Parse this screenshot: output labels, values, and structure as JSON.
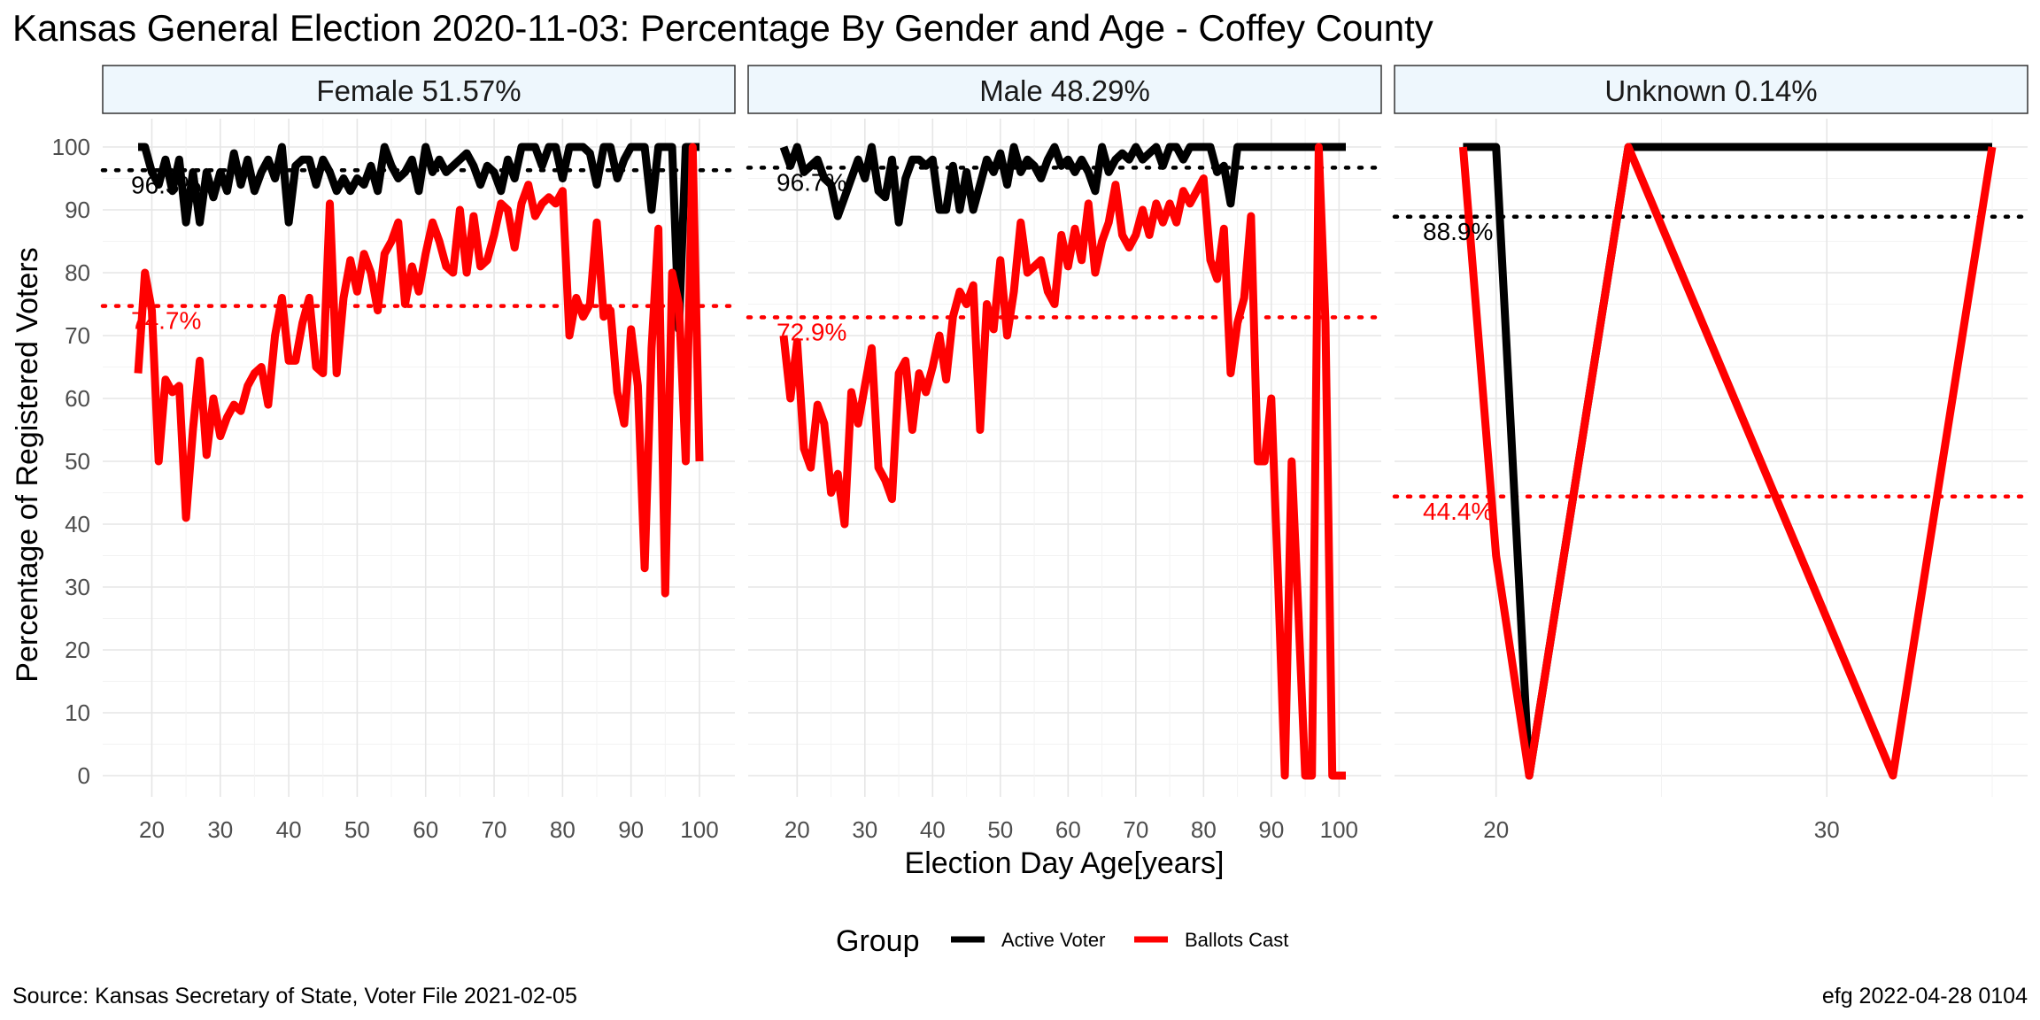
{
  "chart_data": {
    "type": "line",
    "title": "Kansas General Election 2020-11-03:  Percentage By Gender and Age - Coffey County",
    "xlabel": "Election Day Age[years]",
    "ylabel": "Percentage of Registered Voters",
    "ylim": [
      0,
      100
    ],
    "y_ticks": [
      0,
      10,
      20,
      30,
      40,
      50,
      60,
      70,
      80,
      90,
      100
    ],
    "legend": {
      "title": "Group",
      "placement": "bottom",
      "items": [
        {
          "label": "Active Voter",
          "color": "#000000"
        },
        {
          "label": "Ballots Cast",
          "color": "#ff0000"
        }
      ]
    },
    "caption_left": "Source:  Kansas Secretary of State, Voter File  2021-02-05",
    "caption_right": "efg 2022-04-28 0104",
    "colors": {
      "active": "#000000",
      "ballots": "#ff0000",
      "strip_fill": "#eef7fd",
      "grid": "#ebebeb"
    },
    "panels": [
      {
        "strip": "Female 51.57%",
        "xlim": [
          18,
          100
        ],
        "x_ticks": [
          20,
          30,
          40,
          50,
          60,
          70,
          80,
          90,
          100
        ],
        "active_mean": 96.3,
        "ballots_mean": 74.7,
        "active_label": "96.3%",
        "ballots_label": "74.7%",
        "series": [
          {
            "name": "Active Voter",
            "x": [
              18,
              19,
              20,
              21,
              22,
              23,
              24,
              25,
              26,
              27,
              28,
              29,
              30,
              31,
              32,
              33,
              34,
              35,
              36,
              37,
              38,
              39,
              40,
              41,
              42,
              43,
              44,
              45,
              46,
              47,
              48,
              49,
              50,
              51,
              52,
              53,
              54,
              55,
              56,
              57,
              58,
              59,
              60,
              61,
              62,
              63,
              64,
              65,
              66,
              67,
              68,
              69,
              70,
              71,
              72,
              73,
              74,
              75,
              76,
              77,
              78,
              79,
              80,
              81,
              82,
              83,
              84,
              85,
              86,
              87,
              88,
              89,
              90,
              91,
              92,
              93,
              94,
              95,
              96,
              97,
              98,
              99,
              100
            ],
            "y": [
              100,
              100,
              96,
              94,
              98,
              93,
              98,
              88,
              96,
              88,
              96,
              92,
              96,
              93,
              99,
              94,
              98,
              93,
              96,
              98,
              95,
              100,
              88,
              97,
              98,
              98,
              94,
              98,
              96,
              93,
              95,
              93,
              95,
              94,
              97,
              93,
              100,
              97,
              95,
              96,
              98,
              93,
              100,
              96,
              98,
              96,
              97,
              98,
              99,
              97,
              94,
              97,
              96,
              93,
              98,
              95,
              100,
              100,
              100,
              97,
              100,
              100,
              95,
              100,
              100,
              100,
              99,
              94,
              100,
              100,
              95,
              98,
              100,
              100,
              100,
              90,
              100,
              100,
              100,
              71,
              100,
              100,
              100
            ]
          },
          {
            "name": "Ballots Cast",
            "x": [
              18,
              19,
              20,
              21,
              22,
              23,
              24,
              25,
              26,
              27,
              28,
              29,
              30,
              31,
              32,
              33,
              34,
              35,
              36,
              37,
              38,
              39,
              40,
              41,
              42,
              43,
              44,
              45,
              46,
              47,
              48,
              49,
              50,
              51,
              52,
              53,
              54,
              55,
              56,
              57,
              58,
              59,
              60,
              61,
              62,
              63,
              64,
              65,
              66,
              67,
              68,
              69,
              70,
              71,
              72,
              73,
              74,
              75,
              76,
              77,
              78,
              79,
              80,
              81,
              82,
              83,
              84,
              85,
              86,
              87,
              88,
              89,
              90,
              91,
              92,
              93,
              94,
              95,
              96,
              97,
              98,
              99,
              100
            ],
            "y": [
              64,
              80,
              74,
              50,
              63,
              61,
              62,
              41,
              55,
              66,
              51,
              60,
              54,
              57,
              59,
              58,
              62,
              64,
              65,
              59,
              70,
              76,
              66,
              66,
              72,
              76,
              65,
              64,
              91,
              64,
              76,
              82,
              77,
              83,
              80,
              74,
              83,
              85,
              88,
              75,
              81,
              77,
              83,
              88,
              85,
              81,
              80,
              90,
              80,
              89,
              81,
              82,
              86,
              91,
              90,
              84,
              91,
              94,
              89,
              91,
              92,
              91,
              93,
              70,
              76,
              73,
              75,
              88,
              73,
              74,
              61,
              56,
              71,
              62,
              33,
              68,
              87,
              29,
              80,
              75,
              50,
              100,
              50
            ]
          }
        ]
      },
      {
        "strip": "Male 48.29%",
        "xlim": [
          18,
          101
        ],
        "x_ticks": [
          20,
          30,
          40,
          50,
          60,
          70,
          80,
          90,
          100
        ],
        "active_mean": 96.7,
        "ballots_mean": 72.9,
        "active_label": "96.7%",
        "ballots_label": "72.9%",
        "series": [
          {
            "name": "Active Voter",
            "x": [
              18,
              19,
              20,
              21,
              22,
              23,
              24,
              25,
              26,
              27,
              28,
              29,
              30,
              31,
              32,
              33,
              34,
              35,
              36,
              37,
              38,
              39,
              40,
              41,
              42,
              43,
              44,
              45,
              46,
              47,
              48,
              49,
              50,
              51,
              52,
              53,
              54,
              55,
              56,
              57,
              58,
              59,
              60,
              61,
              62,
              63,
              64,
              65,
              66,
              67,
              68,
              69,
              70,
              71,
              72,
              73,
              74,
              75,
              76,
              77,
              78,
              79,
              80,
              81,
              82,
              83,
              84,
              85,
              86,
              87,
              88,
              89,
              90,
              91,
              92,
              93,
              94,
              95,
              96,
              97,
              98,
              99,
              100,
              101
            ],
            "y": [
              100,
              97,
              100,
              96,
              97,
              98,
              95,
              94,
              89,
              92,
              95,
              98,
              95,
              100,
              93,
              92,
              98,
              88,
              95,
              98,
              98,
              97,
              98,
              90,
              90,
              97,
              90,
              96,
              90,
              94,
              98,
              96,
              99,
              94,
              100,
              96,
              98,
              97,
              95,
              98,
              100,
              97,
              98,
              96,
              98,
              96,
              93,
              100,
              96,
              98,
              99,
              98,
              100,
              98,
              99,
              100,
              97,
              100,
              100,
              98,
              100,
              100,
              100,
              100,
              96,
              97,
              91,
              100,
              100,
              100,
              100,
              100,
              100,
              100,
              100,
              100,
              100,
              100,
              100,
              100,
              100,
              100,
              100,
              100
            ]
          },
          {
            "name": "Ballots Cast",
            "x": [
              18,
              19,
              20,
              21,
              22,
              23,
              24,
              25,
              26,
              27,
              28,
              29,
              30,
              31,
              32,
              33,
              34,
              35,
              36,
              37,
              38,
              39,
              40,
              41,
              42,
              43,
              44,
              45,
              46,
              47,
              48,
              49,
              50,
              51,
              52,
              53,
              54,
              55,
              56,
              57,
              58,
              59,
              60,
              61,
              62,
              63,
              64,
              65,
              66,
              67,
              68,
              69,
              70,
              71,
              72,
              73,
              74,
              75,
              76,
              77,
              78,
              79,
              80,
              81,
              82,
              83,
              84,
              85,
              86,
              87,
              88,
              89,
              90,
              91,
              92,
              93,
              94,
              95,
              96,
              97,
              98,
              99,
              100,
              101
            ],
            "y": [
              70,
              60,
              69,
              52,
              49,
              59,
              56,
              45,
              48,
              40,
              61,
              56,
              62,
              68,
              49,
              47,
              44,
              64,
              66,
              55,
              64,
              61,
              65,
              70,
              63,
              73,
              77,
              75,
              78,
              55,
              75,
              71,
              82,
              70,
              77,
              88,
              80,
              81,
              82,
              77,
              75,
              86,
              81,
              87,
              82,
              91,
              80,
              85,
              88,
              94,
              86,
              84,
              86,
              90,
              86,
              91,
              88,
              91,
              88,
              93,
              91,
              93,
              95,
              82,
              79,
              87,
              64,
              72,
              76,
              89,
              50,
              50,
              60,
              31,
              0,
              50,
              26,
              0,
              0,
              100,
              72,
              0,
              0,
              0
            ]
          }
        ]
      },
      {
        "strip": "Unknown 0.14%",
        "xlim": [
          18,
          35
        ],
        "x_ticks": [
          20,
          30
        ],
        "active_mean": 88.9,
        "ballots_mean": 44.4,
        "active_label": "88.9%",
        "ballots_label": "44.4%",
        "series": [
          {
            "name": "Active Voter",
            "x": [
              19,
              20,
              21,
              24,
              32,
              35
            ],
            "y": [
              100,
              100,
              0,
              100,
              100,
              100
            ]
          },
          {
            "name": "Ballots Cast",
            "x": [
              19,
              20,
              21,
              24,
              32,
              35
            ],
            "y": [
              100,
              35,
              0,
              100,
              0,
              100
            ]
          }
        ]
      }
    ]
  }
}
